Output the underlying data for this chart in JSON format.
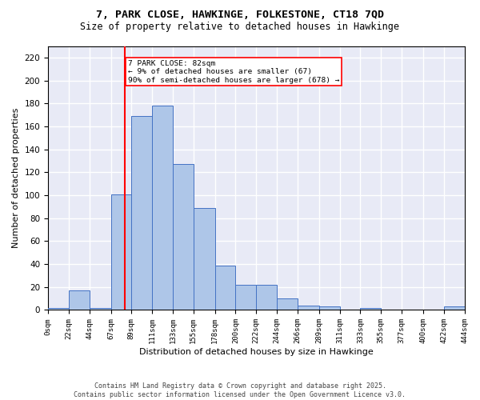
{
  "title_line1": "7, PARK CLOSE, HAWKINGE, FOLKESTONE, CT18 7QD",
  "title_line2": "Size of property relative to detached houses in Hawkinge",
  "xlabel": "Distribution of detached houses by size in Hawkinge",
  "ylabel": "Number of detached properties",
  "bar_color": "#aec6e8",
  "bar_edge_color": "#4472c4",
  "background_color": "#e8eaf6",
  "grid_color": "#ffffff",
  "annotation_text": "7 PARK CLOSE: 82sqm\n← 9% of detached houses are smaller (67)\n90% of semi-detached houses are larger (678) →",
  "annotation_box_color": "white",
  "annotation_box_edge": "red",
  "vline_x": 82,
  "vline_color": "red",
  "bin_edges": [
    0,
    22,
    44,
    67,
    89,
    111,
    133,
    155,
    178,
    200,
    222,
    244,
    266,
    289,
    311,
    333,
    355,
    377,
    400,
    422,
    444
  ],
  "bar_heights": [
    2,
    17,
    2,
    101,
    169,
    178,
    127,
    89,
    39,
    22,
    22,
    10,
    4,
    3,
    0,
    2,
    0,
    0,
    0,
    3
  ],
  "ylim": [
    0,
    230
  ],
  "yticks": [
    0,
    20,
    40,
    60,
    80,
    100,
    120,
    140,
    160,
    180,
    200,
    220
  ],
  "footer_text": "Contains HM Land Registry data © Crown copyright and database right 2025.\nContains public sector information licensed under the Open Government Licence v3.0.",
  "tick_labels": [
    "0sqm",
    "22sqm",
    "44sqm",
    "67sqm",
    "89sqm",
    "111sqm",
    "133sqm",
    "155sqm",
    "178sqm",
    "200sqm",
    "222sqm",
    "244sqm",
    "266sqm",
    "289sqm",
    "311sqm",
    "333sqm",
    "355sqm",
    "377sqm",
    "400sqm",
    "422sqm",
    "444sqm"
  ]
}
